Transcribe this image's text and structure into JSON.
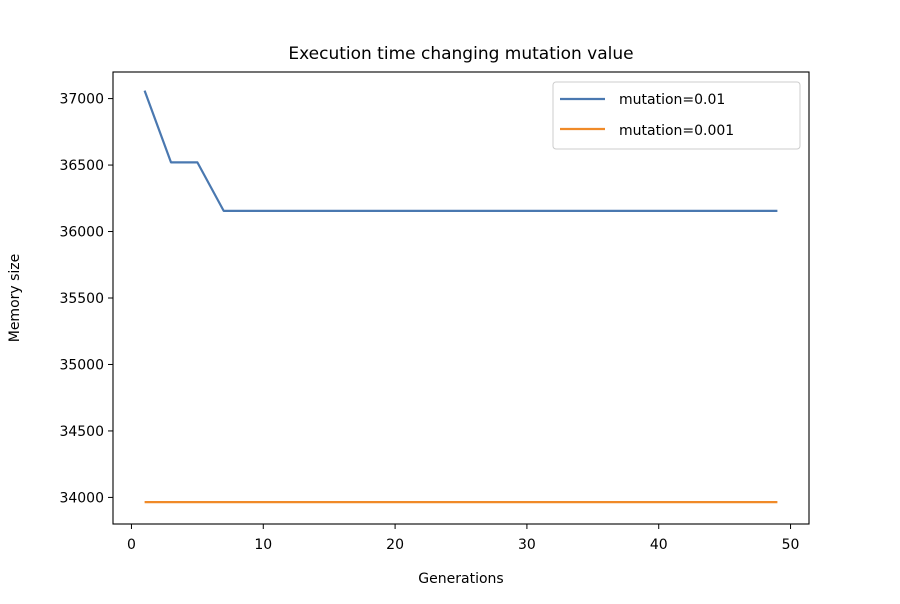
{
  "colors": {
    "series_1": "#4a78b0",
    "series_2": "#f08a28",
    "axes": "#000000",
    "legend_border": "#cccccc"
  },
  "chart_data": {
    "type": "line",
    "title": "Execution time changing mutation value",
    "xlabel": "Generations",
    "ylabel": "Memory size",
    "xlim": [
      -1.4,
      51.4
    ],
    "ylim": [
      33800,
      37200
    ],
    "xticks": [
      0,
      10,
      20,
      30,
      40,
      50
    ],
    "yticks": [
      34000,
      34500,
      35000,
      35500,
      36000,
      36500,
      37000
    ],
    "grid": false,
    "legend_position": "top-right",
    "series": [
      {
        "name": "mutation=0.01",
        "color": "#4a78b0",
        "points": [
          [
            1,
            37060
          ],
          [
            3,
            36520
          ],
          [
            5,
            36520
          ],
          [
            7,
            36155
          ],
          [
            49,
            36155
          ]
        ]
      },
      {
        "name": "mutation=0.001",
        "color": "#f08a28",
        "points": [
          [
            1,
            33965
          ],
          [
            49,
            33965
          ]
        ]
      }
    ]
  }
}
